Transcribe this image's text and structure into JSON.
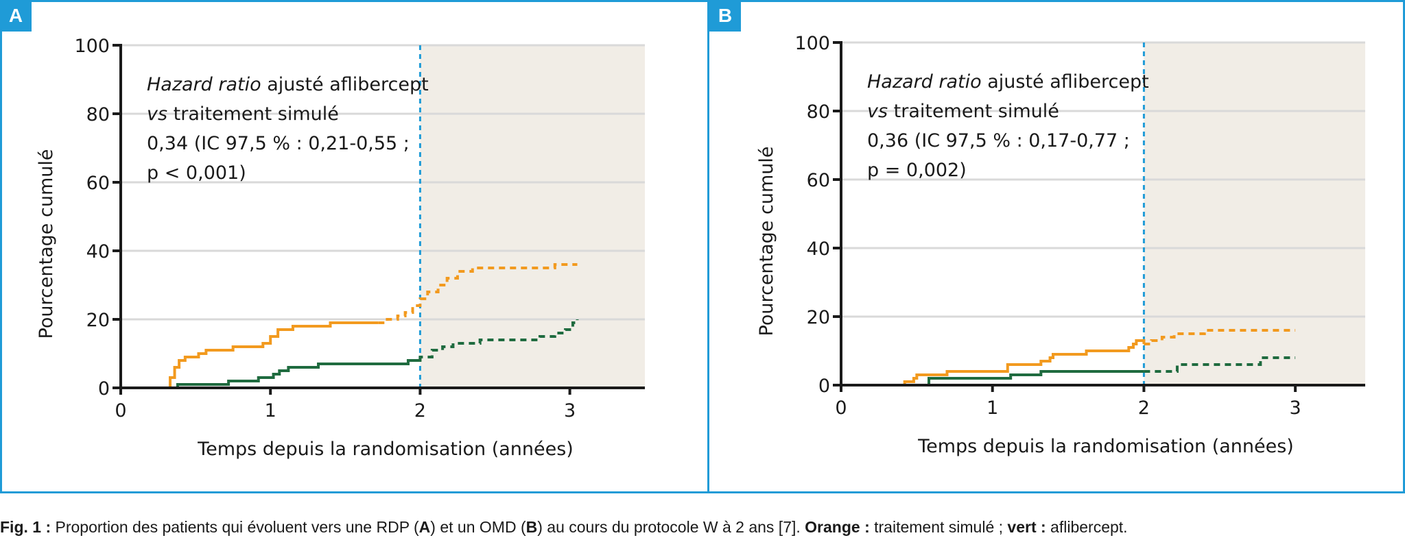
{
  "caption": {
    "fig_label": "Fig. 1 :",
    "text_1": " Proportion des patients qui évoluent vers une RDP (",
    "bold_a": "A",
    "text_2": ") et un OMD (",
    "bold_b": "B",
    "text_3": ") au cours du protocole W à 2 ans [7]. ",
    "orange_label": "Orange :",
    "orange_text": " traitement simulé ; ",
    "green_label": "vert :",
    "green_text": " aflibercept."
  },
  "colors": {
    "border": "#1f9bd7",
    "orange": "#f29a1f",
    "green": "#1f6b3f",
    "dashed_line": "#1f9bd7",
    "shade": "#f1ede6",
    "grid": "#d9d9d9"
  },
  "chart_data": [
    {
      "panel": "A",
      "type": "line",
      "step": true,
      "ylabel": "Pourcentage cumulé",
      "xlabel": "Temps depuis la randomisation (années)",
      "xlim": [
        0,
        3.5
      ],
      "ylim": [
        0,
        100
      ],
      "xticks": [
        "0",
        "1",
        "2",
        "3"
      ],
      "yticks": [
        "0",
        "20",
        "40",
        "60",
        "80",
        "100"
      ],
      "grid": true,
      "reference_line_x": 2,
      "shaded_from_x": 2,
      "annotation": {
        "line1_italic": "Hazard ratio",
        "line1_rest": " ajusté aflibercept",
        "line2_italic": "vs",
        "line2_rest": " traitement simulé",
        "line3": "0,34 (IC 97,5 % : 0,21-0,55 ;",
        "line4": "p < 0,001)"
      },
      "series": [
        {
          "color": "orange",
          "solid_until_x": 1.72,
          "points": [
            [
              0,
              0
            ],
            [
              0.33,
              0
            ],
            [
              0.33,
              3
            ],
            [
              0.36,
              6
            ],
            [
              0.39,
              8
            ],
            [
              0.43,
              9
            ],
            [
              0.52,
              10
            ],
            [
              0.57,
              11
            ],
            [
              0.7,
              11
            ],
            [
              0.75,
              12
            ],
            [
              0.9,
              12
            ],
            [
              0.95,
              13
            ],
            [
              1.0,
              15
            ],
            [
              1.05,
              17
            ],
            [
              1.15,
              18
            ],
            [
              1.4,
              19
            ],
            [
              1.72,
              19
            ],
            [
              1.78,
              20
            ],
            [
              1.85,
              21
            ],
            [
              1.9,
              22
            ],
            [
              1.95,
              24
            ],
            [
              2.0,
              26
            ],
            [
              2.05,
              28
            ],
            [
              2.12,
              30
            ],
            [
              2.18,
              32
            ],
            [
              2.25,
              34
            ],
            [
              2.35,
              35
            ],
            [
              2.5,
              35
            ],
            [
              2.7,
              35
            ],
            [
              2.9,
              36
            ],
            [
              3.05,
              36
            ]
          ]
        },
        {
          "color": "green",
          "solid_until_x": 2.0,
          "points": [
            [
              0,
              0
            ],
            [
              0.38,
              0
            ],
            [
              0.38,
              1
            ],
            [
              0.7,
              1
            ],
            [
              0.72,
              2
            ],
            [
              0.9,
              2
            ],
            [
              0.92,
              3
            ],
            [
              1.0,
              3
            ],
            [
              1.02,
              4
            ],
            [
              1.06,
              5
            ],
            [
              1.12,
              6
            ],
            [
              1.3,
              6
            ],
            [
              1.32,
              7
            ],
            [
              1.7,
              7
            ],
            [
              1.9,
              7
            ],
            [
              1.92,
              8
            ],
            [
              2.0,
              8
            ],
            [
              2.0,
              9
            ],
            [
              2.08,
              11
            ],
            [
              2.15,
              12
            ],
            [
              2.22,
              13
            ],
            [
              2.35,
              13
            ],
            [
              2.4,
              14
            ],
            [
              2.7,
              14
            ],
            [
              2.8,
              15
            ],
            [
              2.9,
              16
            ],
            [
              2.97,
              17
            ],
            [
              3.02,
              19
            ],
            [
              3.05,
              20
            ]
          ]
        }
      ]
    },
    {
      "panel": "B",
      "type": "line",
      "step": true,
      "ylabel": "Pourcentage cumulé",
      "xlabel": "Temps depuis la randomisation (années)",
      "xlim": [
        0,
        3.5
      ],
      "ylim": [
        0,
        100
      ],
      "xticks": [
        "0",
        "1",
        "2",
        "3"
      ],
      "yticks": [
        "0",
        "20",
        "40",
        "60",
        "80",
        "100"
      ],
      "grid": true,
      "reference_line_x": 2,
      "shaded_from_x": 2,
      "annotation": {
        "line1_italic": "Hazard ratio",
        "line1_rest": " ajusté aflibercept",
        "line2_italic": "vs",
        "line2_rest": " traitement simulé",
        "line3": "0,36 (IC 97,5 % : 0,17-0,77 ;",
        "line4": "p = 0,002)"
      },
      "series": [
        {
          "color": "orange",
          "solid_until_x": 2.0,
          "points": [
            [
              0,
              0
            ],
            [
              0.42,
              0
            ],
            [
              0.42,
              1
            ],
            [
              0.48,
              2
            ],
            [
              0.5,
              3
            ],
            [
              0.68,
              3
            ],
            [
              0.7,
              4
            ],
            [
              1.08,
              4
            ],
            [
              1.1,
              6
            ],
            [
              1.3,
              6
            ],
            [
              1.32,
              7
            ],
            [
              1.38,
              8
            ],
            [
              1.4,
              9
            ],
            [
              1.6,
              9
            ],
            [
              1.62,
              10
            ],
            [
              1.85,
              10
            ],
            [
              1.9,
              11
            ],
            [
              1.93,
              12
            ],
            [
              1.95,
              13
            ],
            [
              2.0,
              12
            ],
            [
              2.05,
              13
            ],
            [
              2.12,
              14
            ],
            [
              2.2,
              15
            ],
            [
              2.35,
              15
            ],
            [
              2.4,
              16
            ],
            [
              2.6,
              16
            ],
            [
              3.0,
              16
            ]
          ]
        },
        {
          "color": "green",
          "solid_until_x": 2.0,
          "points": [
            [
              0,
              0
            ],
            [
              0.55,
              0
            ],
            [
              0.58,
              2
            ],
            [
              1.1,
              2
            ],
            [
              1.12,
              3
            ],
            [
              1.3,
              3
            ],
            [
              1.32,
              4
            ],
            [
              1.7,
              4
            ],
            [
              2.0,
              4
            ],
            [
              2.2,
              4
            ],
            [
              2.22,
              6
            ],
            [
              2.6,
              6
            ],
            [
              2.75,
              6
            ],
            [
              2.77,
              8
            ],
            [
              3.0,
              8
            ]
          ]
        }
      ]
    }
  ],
  "panels": {
    "a_label": "A",
    "b_label": "B"
  }
}
